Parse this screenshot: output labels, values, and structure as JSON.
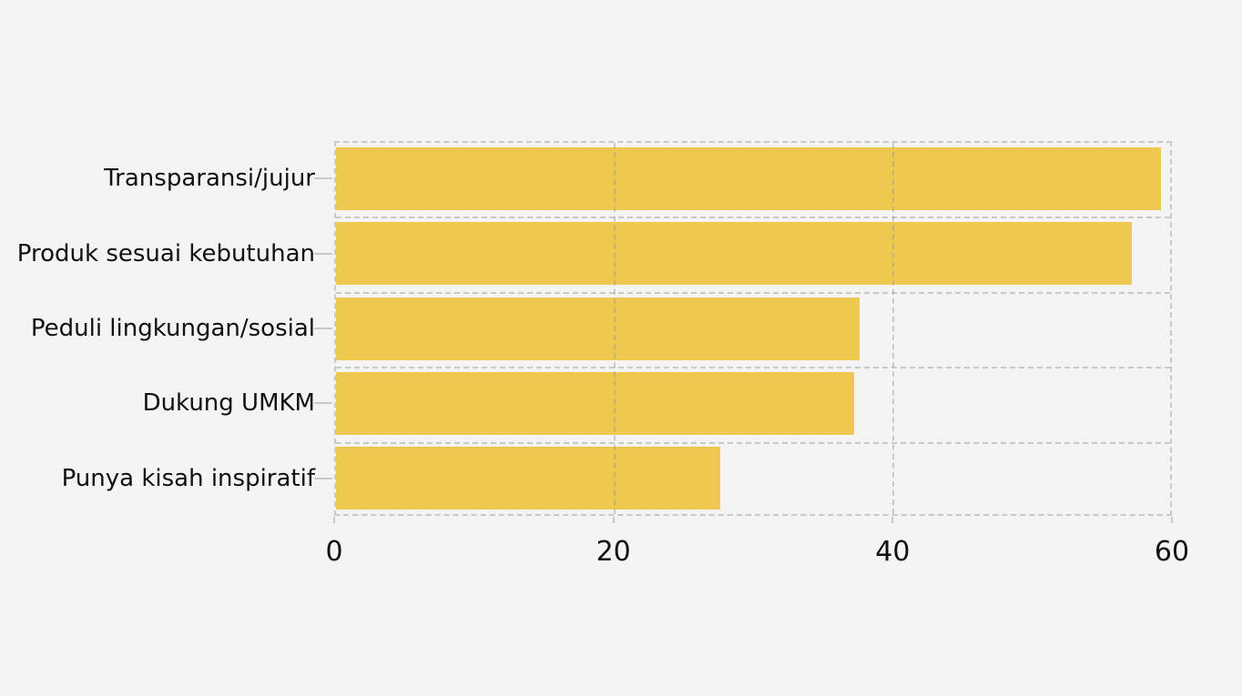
{
  "chart_data": {
    "type": "bar",
    "orientation": "horizontal",
    "categories": [
      "Transparansi/jujur",
      "Produk sesuai kebutuhan",
      "Peduli lingkungan/sosial",
      "Dukung UMKM",
      "Punya kisah inspiratif"
    ],
    "values": [
      59.1,
      57.0,
      37.5,
      37.1,
      27.5
    ],
    "x_ticks": [
      0,
      20,
      40,
      60
    ],
    "x_tick_labels": [
      "0",
      "20",
      "40",
      "60"
    ],
    "xlim": [
      0,
      60
    ],
    "grid": "dashed",
    "legend_position": "none",
    "colors": {
      "bar": "#EFC84F",
      "background": "#F4F4F5",
      "gridline": "#C9C9C9",
      "text": "#111111"
    }
  }
}
